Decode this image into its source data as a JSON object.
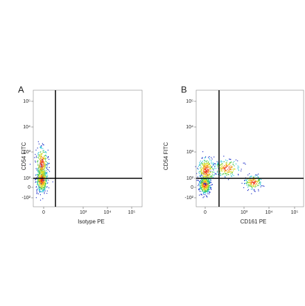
{
  "panels": [
    {
      "letter": "A",
      "y_label": "CD54 FITC",
      "x_label": "Isotype PE",
      "y_ticks": [
        "10⁵",
        "10⁴",
        "10³",
        "10²",
        "0",
        "-10²"
      ],
      "x_ticks": [
        "0",
        "10³",
        "10⁴",
        "10⁵"
      ]
    },
    {
      "letter": "B",
      "y_label": "CD54 FITC",
      "x_label": "CD161 PE",
      "y_ticks": [
        "10⁵",
        "10⁴",
        "10³",
        "10²",
        "0",
        "-10²"
      ],
      "x_ticks": [
        "0",
        "10³",
        "10⁴",
        "10⁵"
      ]
    }
  ]
}
